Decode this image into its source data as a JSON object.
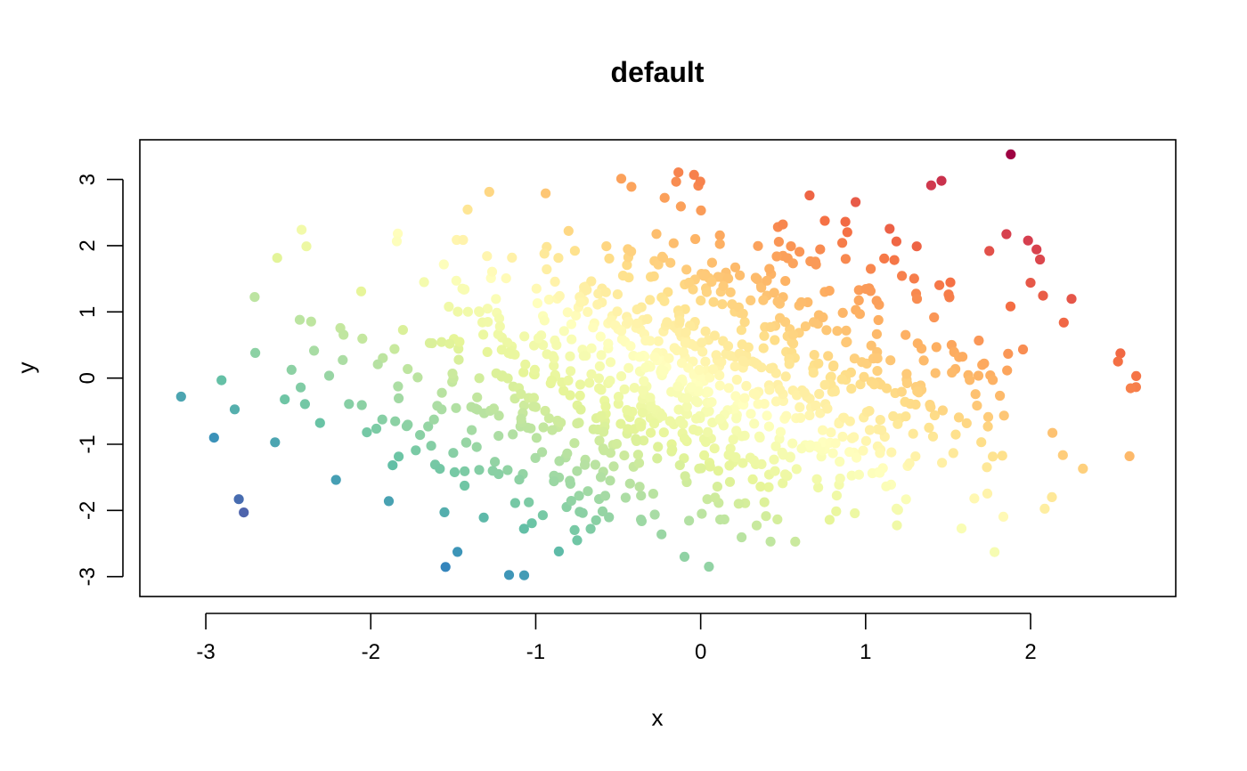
{
  "chart_data": {
    "type": "scatter",
    "title": "default",
    "xlabel": "x",
    "ylabel": "y",
    "xlim": [
      -3.4,
      2.88
    ],
    "ylim": [
      -3.3,
      3.6
    ],
    "x_ticks": [
      -3,
      -2,
      -1,
      0,
      1,
      2
    ],
    "y_ticks": [
      -3,
      -2,
      -1,
      0,
      1,
      2,
      3
    ],
    "x_tick_labels": [
      "-3",
      "-2",
      "-1",
      "0",
      "1",
      "2"
    ],
    "y_tick_labels": [
      "-3",
      "-2",
      "-1",
      "0",
      "1",
      "2",
      "3"
    ],
    "grid": false,
    "legend": "none",
    "point_color_scale": "Spectral (reversed): blue-purple at low x - y, dark red at high x + y",
    "colors": {
      "low": "#5e4fa2",
      "mid_low": "#66c2a5",
      "mid": "#ffffbf",
      "mid_high": "#fdae61",
      "high": "#9e0142"
    },
    "points_description": "~1000 bivariate normal points, x ~ N(0,1), y ~ N(0,1.2)",
    "highlighted_points": [
      {
        "x": -3.15,
        "y": -0.28
      },
      {
        "x": -2.95,
        "y": -0.9
      },
      {
        "x": -2.8,
        "y": -1.83
      },
      {
        "x": -2.77,
        "y": -2.03
      },
      {
        "x": -2.7,
        "y": 0.38
      },
      {
        "x": -2.39,
        "y": 1.99
      },
      {
        "x": -1.07,
        "y": -2.98
      },
      {
        "x": 0.05,
        "y": -2.85
      },
      {
        "x": -0.04,
        "y": 3.07
      },
      {
        "x": 1.46,
        "y": 2.98
      },
      {
        "x": 1.88,
        "y": 3.38
      },
      {
        "x": 2.64,
        "y": 0.03
      },
      {
        "x": 2.53,
        "y": 0.25
      },
      {
        "x": 2.6,
        "y": -1.18
      },
      {
        "x": -0.94,
        "y": 2.79
      },
      {
        "x": -0.42,
        "y": 2.89
      },
      {
        "x": 0.66,
        "y": 2.76
      },
      {
        "x": 1.75,
        "y": 1.92
      },
      {
        "x": 2.0,
        "y": 1.44
      },
      {
        "x": -0.86,
        "y": -2.62
      }
    ]
  }
}
